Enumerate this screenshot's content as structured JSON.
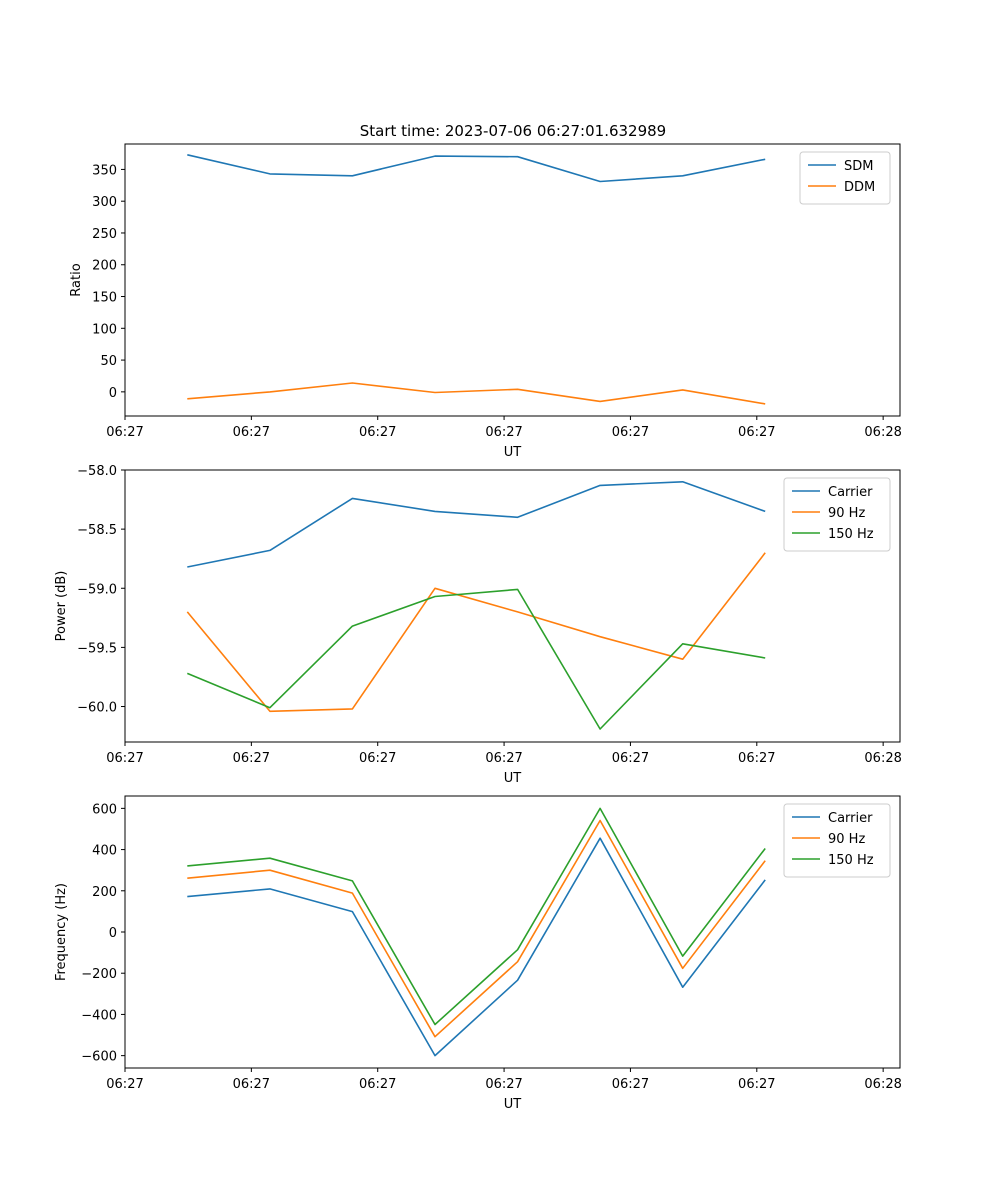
{
  "figure": {
    "title": "Start time: 2023-07-06 06:27:01.632989"
  },
  "chart_data": [
    {
      "type": "line",
      "title": "Start time: 2023-07-06 06:27:01.632989",
      "xlabel": "UT",
      "ylabel": "Ratio",
      "xlim": [
        0,
        9.2
      ],
      "ylim": [
        -38,
        390
      ],
      "xticks": [
        0.0,
        1.5,
        3.0,
        4.5,
        6.0,
        7.5,
        9.0
      ],
      "xtick_labels": [
        "06:27",
        "06:27",
        "06:27",
        "06:27",
        "06:27",
        "06:27",
        "06:28"
      ],
      "yticks": [
        0,
        50,
        100,
        150,
        200,
        250,
        300,
        350
      ],
      "legend": "top-right",
      "x": [
        0.74,
        1.72,
        2.7,
        3.68,
        4.66,
        5.64,
        6.62,
        7.6
      ],
      "series": [
        {
          "name": "SDM",
          "color": "#1f77b4",
          "values": [
            373,
            343,
            340,
            371,
            370,
            331,
            340,
            366
          ]
        },
        {
          "name": "DDM",
          "color": "#ff7f0e",
          "values": [
            -11,
            0,
            14,
            -1,
            4,
            -15,
            3,
            -19
          ]
        }
      ]
    },
    {
      "type": "line",
      "title": "",
      "xlabel": "UT",
      "ylabel": "Power (dB)",
      "xlim": [
        0,
        9.2
      ],
      "ylim": [
        -60.3,
        -58.0
      ],
      "xticks": [
        0.0,
        1.5,
        3.0,
        4.5,
        6.0,
        7.5,
        9.0
      ],
      "xtick_labels": [
        "06:27",
        "06:27",
        "06:27",
        "06:27",
        "06:27",
        "06:27",
        "06:28"
      ],
      "yticks": [
        -60.0,
        -59.5,
        -59.0,
        -58.5,
        -58.0
      ],
      "ytick_labels": [
        "−60.0",
        "−59.5",
        "−59.0",
        "−58.5",
        "−58.0"
      ],
      "legend": "top-right",
      "x": [
        0.74,
        1.72,
        2.7,
        3.68,
        4.66,
        5.64,
        6.62,
        7.6
      ],
      "series": [
        {
          "name": "Carrier",
          "color": "#1f77b4",
          "values": [
            -58.82,
            -58.68,
            -58.24,
            -58.35,
            -58.4,
            -58.13,
            -58.1,
            -58.35
          ]
        },
        {
          "name": "90 Hz",
          "color": "#ff7f0e",
          "values": [
            -59.2,
            -60.04,
            -60.02,
            -59.0,
            -59.2,
            -59.41,
            -59.6,
            -58.7
          ]
        },
        {
          "name": "150 Hz",
          "color": "#2ca02c",
          "values": [
            -59.72,
            -60.01,
            -59.32,
            -59.07,
            -59.01,
            -60.19,
            -59.47,
            -59.59
          ]
        }
      ]
    },
    {
      "type": "line",
      "title": "",
      "xlabel": "UT",
      "ylabel": "Frequency (Hz)",
      "xlim": [
        0,
        9.2
      ],
      "ylim": [
        -660,
        660
      ],
      "xticks": [
        0.0,
        1.5,
        3.0,
        4.5,
        6.0,
        7.5,
        9.0
      ],
      "xtick_labels": [
        "06:27",
        "06:27",
        "06:27",
        "06:27",
        "06:27",
        "06:27",
        "06:28"
      ],
      "yticks": [
        -600,
        -400,
        -200,
        0,
        200,
        400,
        600
      ],
      "ytick_labels": [
        "−600",
        "−400",
        "−200",
        "0",
        "200",
        "400",
        "600"
      ],
      "legend": "top-right",
      "x": [
        0.74,
        1.72,
        2.7,
        3.68,
        4.66,
        5.64,
        6.62,
        7.6
      ],
      "series": [
        {
          "name": "Carrier",
          "color": "#1f77b4",
          "values": [
            172,
            209,
            99,
            -600,
            -234,
            455,
            -268,
            253
          ]
        },
        {
          "name": "90 Hz",
          "color": "#ff7f0e",
          "values": [
            261,
            300,
            189,
            -508,
            -144,
            541,
            -176,
            346
          ]
        },
        {
          "name": "150 Hz",
          "color": "#2ca02c",
          "values": [
            321,
            358,
            248,
            -449,
            -86,
            600,
            -117,
            405
          ]
        }
      ]
    }
  ]
}
